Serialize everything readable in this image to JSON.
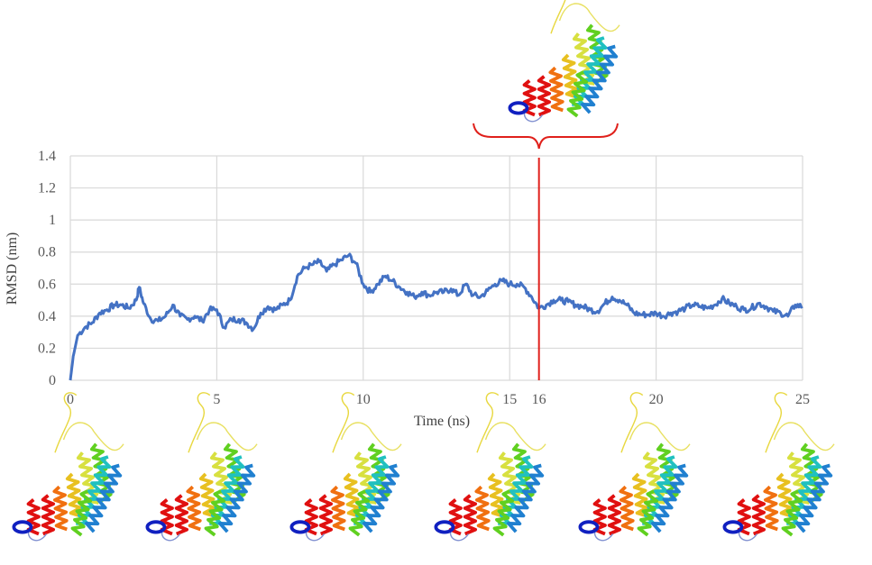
{
  "chart_data": {
    "type": "line",
    "title": "",
    "xlabel": "Time (ns)",
    "ylabel": "RMSD (nm)",
    "xlim": [
      0,
      25
    ],
    "ylim": [
      0,
      1.4
    ],
    "grid": true,
    "xticks": [
      "0",
      "5",
      "10",
      "15",
      "20",
      "25"
    ],
    "yticks": [
      "0",
      "0.2",
      "0.4",
      "0.6",
      "0.8",
      "1",
      "1.2",
      "1.4"
    ],
    "marker": {
      "x": 16,
      "label": "16",
      "color": "#e0201b"
    },
    "series": [
      {
        "name": "RMSD",
        "color": "#4472c4",
        "x": [
          0,
          0.1,
          0.25,
          0.5,
          0.75,
          1,
          1.25,
          1.5,
          1.75,
          2,
          2.25,
          2.35,
          2.5,
          2.75,
          3,
          3.25,
          3.5,
          3.75,
          4,
          4.25,
          4.5,
          4.75,
          5,
          5.25,
          5.5,
          5.75,
          6,
          6.25,
          6.5,
          6.75,
          7,
          7.25,
          7.5,
          7.75,
          8,
          8.25,
          8.5,
          8.75,
          9,
          9.25,
          9.5,
          9.75,
          10,
          10.25,
          10.5,
          10.75,
          11,
          11.25,
          11.5,
          11.75,
          12,
          12.25,
          12.5,
          12.75,
          13,
          13.25,
          13.5,
          13.75,
          14,
          14.25,
          14.5,
          14.75,
          15,
          15.25,
          15.5,
          15.75,
          16,
          16.25,
          16.5,
          16.75,
          17,
          17.25,
          17.5,
          17.75,
          18,
          18.25,
          18.5,
          18.75,
          19,
          19.25,
          19.5,
          19.75,
          20,
          20.25,
          20.5,
          20.75,
          21,
          21.25,
          21.5,
          21.75,
          22,
          22.25,
          22.5,
          22.75,
          23,
          23.25,
          23.5,
          23.75,
          24,
          24.25,
          24.5,
          24.75,
          25
        ],
        "y": [
          0,
          0.15,
          0.28,
          0.33,
          0.36,
          0.42,
          0.44,
          0.47,
          0.47,
          0.45,
          0.5,
          0.58,
          0.48,
          0.38,
          0.37,
          0.4,
          0.47,
          0.4,
          0.38,
          0.4,
          0.37,
          0.44,
          0.44,
          0.33,
          0.38,
          0.38,
          0.36,
          0.32,
          0.42,
          0.46,
          0.44,
          0.47,
          0.5,
          0.65,
          0.7,
          0.72,
          0.74,
          0.68,
          0.72,
          0.75,
          0.78,
          0.73,
          0.6,
          0.55,
          0.6,
          0.65,
          0.62,
          0.58,
          0.55,
          0.52,
          0.55,
          0.53,
          0.55,
          0.55,
          0.57,
          0.53,
          0.6,
          0.53,
          0.52,
          0.56,
          0.6,
          0.62,
          0.6,
          0.6,
          0.58,
          0.52,
          0.45,
          0.47,
          0.5,
          0.5,
          0.49,
          0.47,
          0.46,
          0.44,
          0.43,
          0.48,
          0.52,
          0.5,
          0.47,
          0.42,
          0.41,
          0.41,
          0.42,
          0.4,
          0.42,
          0.43,
          0.45,
          0.47,
          0.46,
          0.45,
          0.47,
          0.51,
          0.48,
          0.46,
          0.44,
          0.45,
          0.48,
          0.46,
          0.43,
          0.42,
          0.4,
          0.47,
          0.46
        ]
      }
    ]
  },
  "structures": {
    "colors": [
      "#e01010",
      "#f07010",
      "#e8c020",
      "#d8e040",
      "#60d020",
      "#20c0c0",
      "#2080d0",
      "#1020c0"
    ],
    "count_bottom": 6,
    "top_label_time": 16
  }
}
